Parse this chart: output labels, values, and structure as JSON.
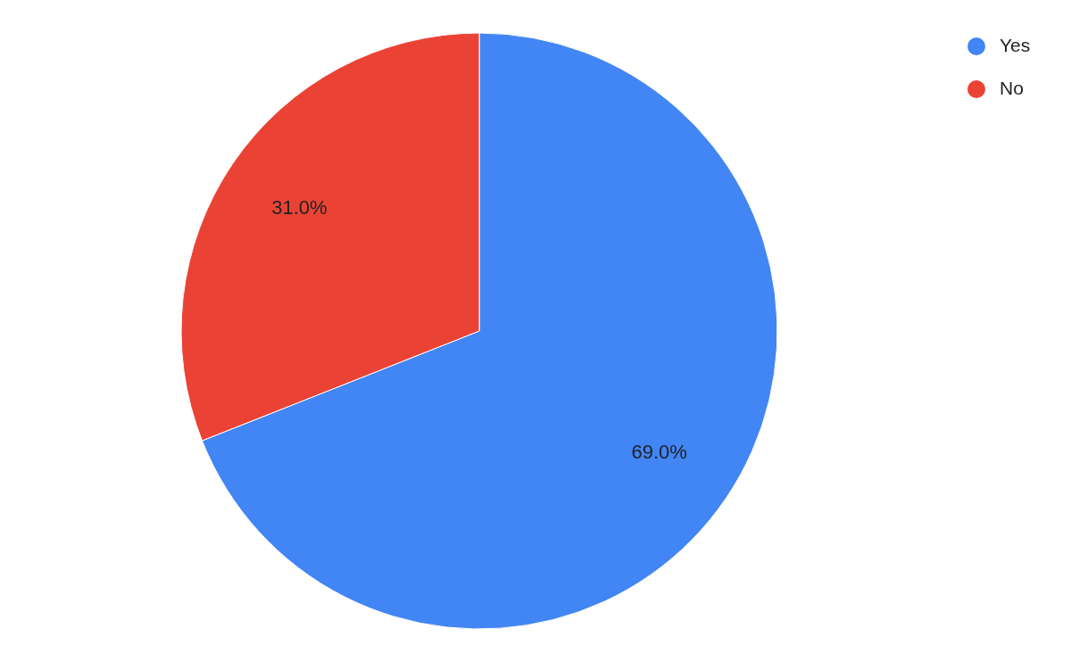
{
  "chart_data": {
    "type": "pie",
    "categories": [
      "Yes",
      "No"
    ],
    "values": [
      69,
      31
    ],
    "colors": [
      "#4285f4",
      "#ea4335"
    ],
    "value_labels": [
      "69.0%",
      "31.0%"
    ],
    "legend": "top right"
  }
}
